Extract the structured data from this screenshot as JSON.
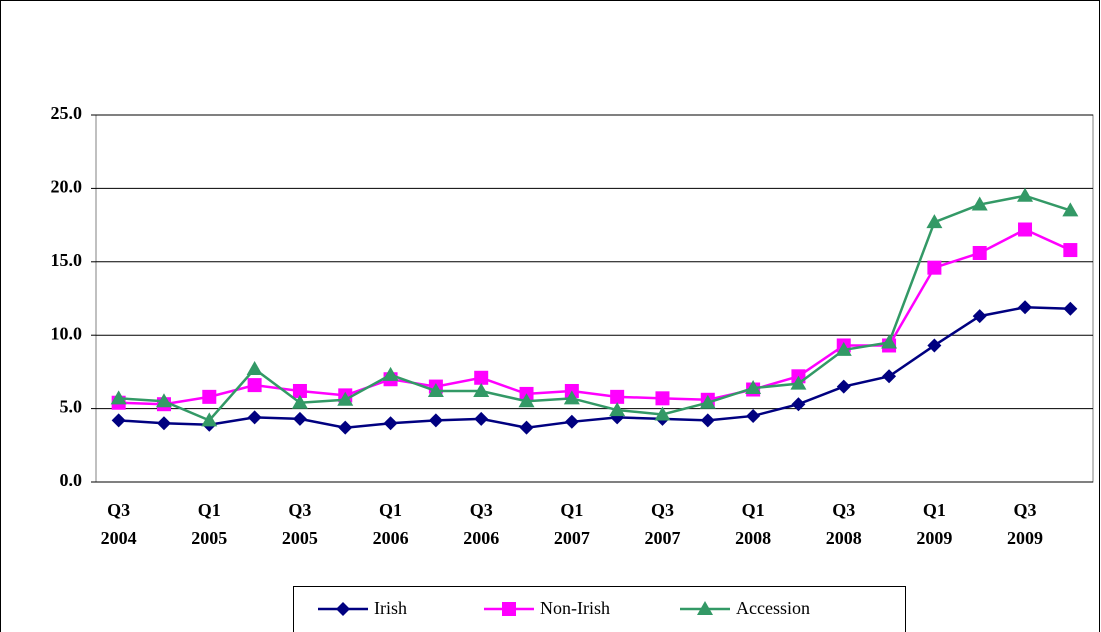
{
  "chart_data": {
    "type": "line",
    "categories": [
      "Q3\n2004",
      null,
      "Q1\n2005",
      null,
      "Q3\n2005",
      null,
      "Q1\n2006",
      null,
      "Q3\n2006",
      null,
      "Q1\n2007",
      null,
      "Q3\n2007",
      null,
      "Q1\n2008",
      null,
      "Q3\n2008",
      null,
      "Q1\n2009",
      null,
      "Q3\n2009",
      null
    ],
    "series": [
      {
        "name": "Irish",
        "color": "#000080",
        "marker": "diamond",
        "values": [
          4.2,
          4.0,
          3.9,
          4.4,
          4.3,
          3.7,
          4.0,
          4.2,
          4.3,
          3.7,
          4.1,
          4.4,
          4.3,
          4.2,
          4.5,
          5.3,
          6.5,
          7.2,
          9.3,
          11.3,
          11.9,
          11.8
        ]
      },
      {
        "name": "Non-Irish",
        "color": "#ff00ff",
        "marker": "square",
        "values": [
          5.4,
          5.3,
          5.8,
          6.6,
          6.2,
          5.9,
          7.0,
          6.5,
          7.1,
          6.0,
          6.2,
          5.8,
          5.7,
          5.6,
          6.3,
          7.2,
          9.3,
          9.3,
          14.6,
          15.6,
          17.2,
          15.8
        ]
      },
      {
        "name": "Accession",
        "color": "#339966",
        "marker": "triangle",
        "values": [
          5.7,
          5.5,
          4.2,
          7.7,
          5.4,
          5.6,
          7.3,
          6.2,
          6.2,
          5.5,
          5.7,
          4.9,
          4.6,
          5.4,
          6.4,
          6.7,
          9.0,
          9.5,
          17.7,
          18.9,
          19.5,
          18.5
        ]
      }
    ],
    "ylim": [
      0,
      25
    ],
    "yticks": [
      {
        "value": 0,
        "label": "0.0"
      },
      {
        "value": 5,
        "label": "5.0"
      },
      {
        "value": 10,
        "label": "10.0"
      },
      {
        "value": 15,
        "label": "15.0"
      },
      {
        "value": 20,
        "label": "20.0"
      },
      {
        "value": 25,
        "label": "25.0"
      }
    ],
    "grid": true,
    "legend": "bottom"
  }
}
